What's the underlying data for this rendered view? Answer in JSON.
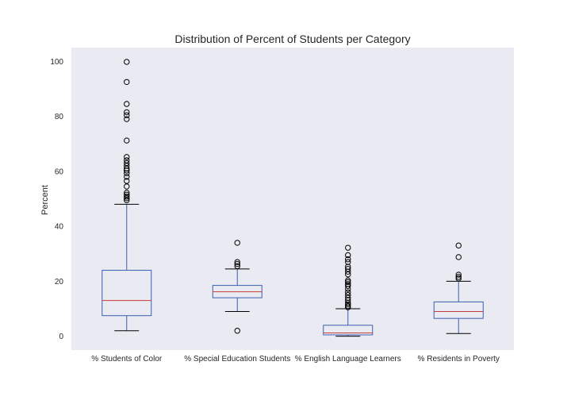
{
  "chart_data": {
    "type": "box",
    "title": "Distribution of Percent of Students per Category",
    "xlabel": "",
    "ylabel": "Percent",
    "ylim": [
      -5,
      105
    ],
    "yticks": [
      0,
      20,
      40,
      60,
      80,
      100
    ],
    "grid": false,
    "colors": {
      "background": "#eaeaf2",
      "box": "#3a5fb0",
      "median": "#c43b3b",
      "whisker": "#3a5fb0",
      "cap": "#000000",
      "flier": "#000000"
    },
    "categories": [
      "% Students of Color",
      "% Special Education Students",
      "% English Language Learners",
      "% Residents in Poverty"
    ],
    "boxes": [
      {
        "whisker_low": 2,
        "q1": 7.5,
        "median": 13,
        "q3": 24,
        "whisker_high": 48,
        "fliers": [
          49.5,
          50.2,
          50.8,
          51.5,
          52.2,
          54.5,
          56.5,
          58,
          59.3,
          60.3,
          61,
          62,
          63,
          64,
          65.2,
          71.2,
          79,
          80.4,
          81.5,
          84.5,
          92.5,
          99.8
        ]
      },
      {
        "whisker_low": 9,
        "q1": 14,
        "median": 16.2,
        "q3": 18.5,
        "whisker_high": 24.5,
        "fliers": [
          2,
          25.5,
          26.3,
          27,
          34
        ]
      },
      {
        "whisker_low": 0,
        "q1": 0.5,
        "median": 1.2,
        "q3": 4,
        "whisker_high": 10,
        "fliers": [
          10.5,
          11,
          11.6,
          12.2,
          13.1,
          14,
          15,
          16,
          17.2,
          18.3,
          19,
          19.7,
          20.3,
          22.5,
          23.5,
          24.5,
          25.3,
          27,
          28,
          29.5,
          32.2
        ]
      },
      {
        "whisker_low": 1,
        "q1": 6.5,
        "median": 9,
        "q3": 12.5,
        "whisker_high": 20,
        "fliers": [
          21,
          21.6,
          22.4,
          28.8,
          33
        ]
      }
    ]
  }
}
